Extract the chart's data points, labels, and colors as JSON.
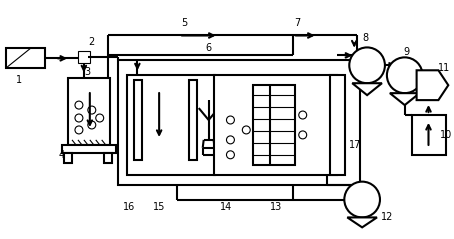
{
  "bg_color": "#ffffff",
  "line_color": "#000000",
  "lw": 1.5,
  "tlw": 0.8,
  "fig_width": 4.54,
  "fig_height": 2.39,
  "dpi": 100
}
